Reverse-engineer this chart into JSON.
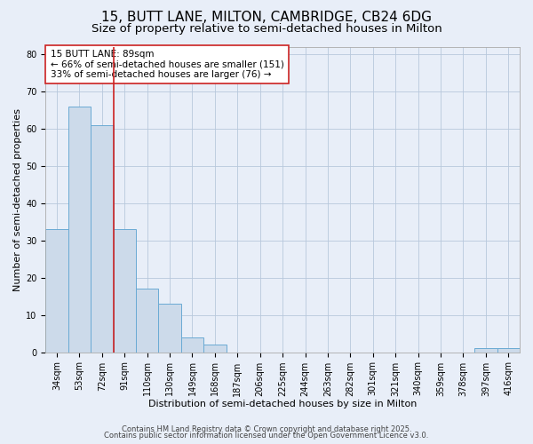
{
  "title_line1": "15, BUTT LANE, MILTON, CAMBRIDGE, CB24 6DG",
  "title_line2": "Size of property relative to semi-detached houses in Milton",
  "xlabel": "Distribution of semi-detached houses by size in Milton",
  "ylabel": "Number of semi-detached properties",
  "bar_labels": [
    "34sqm",
    "53sqm",
    "72sqm",
    "91sqm",
    "110sqm",
    "130sqm",
    "149sqm",
    "168sqm",
    "187sqm",
    "206sqm",
    "225sqm",
    "244sqm",
    "263sqm",
    "282sqm",
    "301sqm",
    "321sqm",
    "340sqm",
    "359sqm",
    "378sqm",
    "397sqm",
    "416sqm"
  ],
  "bar_values": [
    33,
    66,
    61,
    33,
    17,
    13,
    4,
    2,
    0,
    0,
    0,
    0,
    0,
    0,
    0,
    0,
    0,
    0,
    0,
    1,
    1
  ],
  "bar_color": "#ccdaea",
  "bar_edge_color": "#6aaad4",
  "grid_color": "#b8c8dc",
  "background_color": "#e8eef8",
  "annotation_line_color": "#cc2222",
  "annotation_box_text": "15 BUTT LANE: 89sqm\n← 66% of semi-detached houses are smaller (151)\n33% of semi-detached houses are larger (76) →",
  "annotation_box_color": "#ffffff",
  "annotation_box_edge_color": "#cc2222",
  "ylim": [
    0,
    82
  ],
  "yticks": [
    0,
    10,
    20,
    30,
    40,
    50,
    60,
    70,
    80
  ],
  "footer_line1": "Contains HM Land Registry data © Crown copyright and database right 2025.",
  "footer_line2": "Contains public sector information licensed under the Open Government Licence v3.0.",
  "title_fontsize": 11,
  "subtitle_fontsize": 9.5,
  "axis_label_fontsize": 8,
  "tick_fontsize": 7,
  "annotation_fontsize": 7.5,
  "footer_fontsize": 6
}
